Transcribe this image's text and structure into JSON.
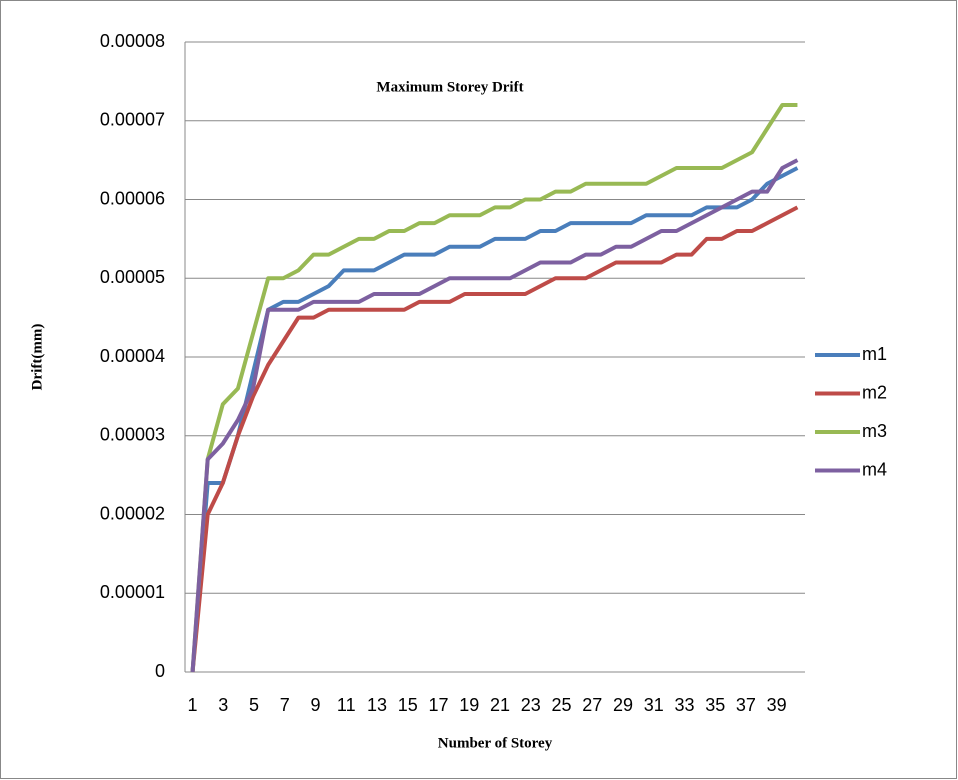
{
  "chart_data": {
    "type": "line",
    "title": "Maximum Storey Drift",
    "x_label": "Number of Storey",
    "y_label": "Drift(mm)",
    "categories": [
      "1",
      null,
      "3",
      null,
      "5",
      null,
      "7",
      null,
      "9",
      null,
      "11",
      null,
      "13",
      null,
      "15",
      null,
      "17",
      null,
      "19",
      null,
      "21",
      null,
      "23",
      null,
      "25",
      null,
      "27",
      null,
      "29",
      null,
      "31",
      null,
      "33",
      null,
      "35",
      null,
      "37",
      null,
      "39",
      null,
      null
    ],
    "series": [
      {
        "name": "m1",
        "color": "#4a7ebb",
        "values": [
          0,
          2.4e-05,
          2.4e-05,
          3e-05,
          3.8e-05,
          4.6e-05,
          4.7e-05,
          4.7e-05,
          4.8e-05,
          4.9e-05,
          5.1e-05,
          5.1e-05,
          5.1e-05,
          5.2e-05,
          5.3e-05,
          5.3e-05,
          5.3e-05,
          5.4e-05,
          5.4e-05,
          5.4e-05,
          5.5e-05,
          5.5e-05,
          5.5e-05,
          5.6e-05,
          5.6e-05,
          5.7e-05,
          5.7e-05,
          5.7e-05,
          5.7e-05,
          5.7e-05,
          5.8e-05,
          5.8e-05,
          5.8e-05,
          5.8e-05,
          5.9e-05,
          5.9e-05,
          5.9e-05,
          6e-05,
          6.2e-05,
          6.3e-05,
          6.4e-05
        ]
      },
      {
        "name": "m2",
        "color": "#be4b48",
        "values": [
          0,
          2e-05,
          2.4e-05,
          3e-05,
          3.5e-05,
          3.9e-05,
          4.2e-05,
          4.5e-05,
          4.5e-05,
          4.6e-05,
          4.6e-05,
          4.6e-05,
          4.6e-05,
          4.6e-05,
          4.6e-05,
          4.7e-05,
          4.7e-05,
          4.7e-05,
          4.8e-05,
          4.8e-05,
          4.8e-05,
          4.8e-05,
          4.8e-05,
          4.9e-05,
          5e-05,
          5e-05,
          5e-05,
          5.1e-05,
          5.2e-05,
          5.2e-05,
          5.2e-05,
          5.2e-05,
          5.3e-05,
          5.3e-05,
          5.5e-05,
          5.5e-05,
          5.6e-05,
          5.6e-05,
          5.7e-05,
          5.8e-05,
          5.9e-05
        ]
      },
      {
        "name": "m3",
        "color": "#98b954",
        "values": [
          0,
          2.7e-05,
          3.4e-05,
          3.6e-05,
          4.3e-05,
          5e-05,
          5e-05,
          5.1e-05,
          5.3e-05,
          5.3e-05,
          5.4e-05,
          5.5e-05,
          5.5e-05,
          5.6e-05,
          5.6e-05,
          5.7e-05,
          5.7e-05,
          5.8e-05,
          5.8e-05,
          5.8e-05,
          5.9e-05,
          5.9e-05,
          6e-05,
          6e-05,
          6.1e-05,
          6.1e-05,
          6.2e-05,
          6.2e-05,
          6.2e-05,
          6.2e-05,
          6.2e-05,
          6.3e-05,
          6.4e-05,
          6.4e-05,
          6.4e-05,
          6.4e-05,
          6.5e-05,
          6.6e-05,
          6.9e-05,
          7.2e-05,
          7.2e-05
        ]
      },
      {
        "name": "m4",
        "color": "#7d60a0",
        "values": [
          0,
          2.7e-05,
          2.9e-05,
          3.2e-05,
          3.6e-05,
          4.6e-05,
          4.6e-05,
          4.6e-05,
          4.7e-05,
          4.7e-05,
          4.7e-05,
          4.7e-05,
          4.8e-05,
          4.8e-05,
          4.8e-05,
          4.8e-05,
          4.9e-05,
          5e-05,
          5e-05,
          5e-05,
          5e-05,
          5e-05,
          5.1e-05,
          5.2e-05,
          5.2e-05,
          5.2e-05,
          5.3e-05,
          5.3e-05,
          5.4e-05,
          5.4e-05,
          5.5e-05,
          5.6e-05,
          5.6e-05,
          5.7e-05,
          5.8e-05,
          5.9e-05,
          6e-05,
          6.1e-05,
          6.1e-05,
          6.4e-05,
          6.5e-05
        ]
      }
    ],
    "ylim": [
      0,
      8e-05
    ],
    "yticks": [
      0,
      1e-05,
      2e-05,
      3e-05,
      4e-05,
      5e-05,
      6e-05,
      7e-05,
      8e-05
    ],
    "grid": true,
    "legend": "right"
  }
}
